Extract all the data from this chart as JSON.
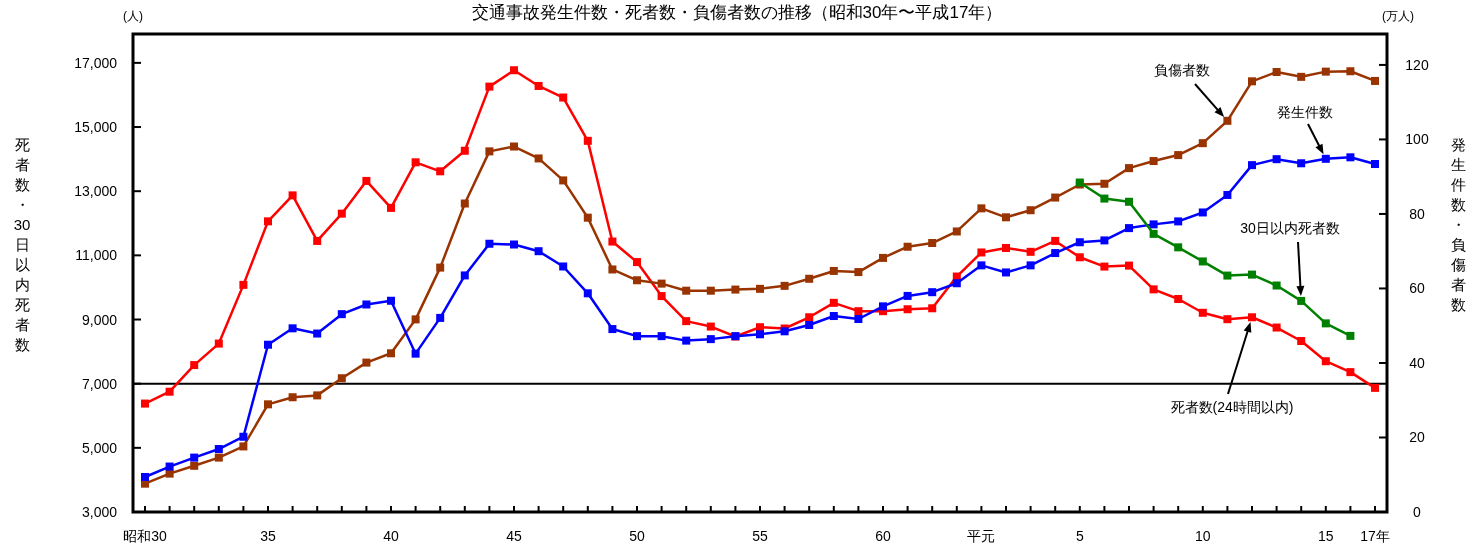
{
  "chart_data": {
    "type": "line",
    "title": "交通事故発生件数・死者数・負傷者数の推移（昭和30年〜平成17年）",
    "ylabel": "死者数・30日以内死者数",
    "y2label": "発生件数・負傷者数",
    "annotations": [
      "(人)",
      "(万人)"
    ],
    "categories": [
      "昭和30",
      null,
      null,
      null,
      null,
      "35",
      null,
      null,
      null,
      null,
      "40",
      null,
      null,
      null,
      null,
      "45",
      null,
      null,
      null,
      null,
      "50",
      null,
      null,
      null,
      null,
      "55",
      null,
      null,
      null,
      null,
      "60",
      null,
      null,
      null,
      "平元",
      null,
      null,
      null,
      "5",
      null,
      null,
      null,
      null,
      "10",
      null,
      null,
      null,
      null,
      "15",
      null,
      "17年"
    ],
    "ylim": [
      3000,
      17900
    ],
    "yticks": [
      {
        "value": 3000,
        "label": "3,000"
      },
      {
        "value": 5000,
        "label": "5,000"
      },
      {
        "value": 7000,
        "label": "7,000"
      },
      {
        "value": 9000,
        "label": "9,000"
      },
      {
        "value": 11000,
        "label": "11,000"
      },
      {
        "value": 13000,
        "label": "13,000"
      },
      {
        "value": 15000,
        "label": "15,000"
      },
      {
        "value": 17000,
        "label": "17,000"
      }
    ],
    "y2lim": [
      0,
      128.3
    ],
    "y2ticks": [
      0,
      20,
      40,
      60,
      80,
      100,
      120
    ],
    "marker": "square",
    "ref_lines": [
      {
        "axis": "y",
        "value": 7000,
        "color": "#000000"
      }
    ],
    "series": [
      {
        "name": "死者数(24時間以内)",
        "color": "#ff0000",
        "values": [
          6380,
          6750,
          7580,
          8250,
          10080,
          12060,
          12870,
          11450,
          12300,
          13320,
          12480,
          13900,
          13620,
          14260,
          16260,
          16770,
          16280,
          15920,
          14570,
          11430,
          10790,
          9730,
          8950,
          8780,
          8470,
          8760,
          8720,
          9070,
          9520,
          9260,
          9260,
          9320,
          9350,
          10340,
          11090,
          11230,
          11110,
          11450,
          10940,
          10650,
          10680,
          9940,
          9640,
          9210,
          9010,
          9070,
          8750,
          8330,
          7700,
          7360,
          6870
        ]
      },
      {
        "name": "負傷者数",
        "color": "#993300",
        "axis": "y2",
        "values": [
          7.6,
          10.3,
          12.4,
          14.6,
          17.6,
          28.9,
          30.8,
          31.3,
          35.9,
          40.1,
          42.6,
          51.7,
          65.6,
          82.8,
          96.8,
          98.1,
          94.9,
          89.0,
          79.0,
          65.1,
          62.2,
          61.3,
          59.4,
          59.4,
          59.7,
          59.9,
          60.7,
          62.6,
          64.7,
          64.4,
          68.2,
          71.2,
          72.2,
          75.3,
          81.5,
          79.1,
          81.0,
          84.4,
          87.9,
          88.1,
          92.3,
          94.2,
          95.8,
          99.0,
          105.0,
          115.6,
          118.1,
          116.8,
          118.2,
          118.3,
          115.7
        ]
      },
      {
        "name": "発生件数",
        "color": "#0000ff",
        "axis": "y2",
        "values": [
          9.4,
          12.2,
          14.6,
          16.9,
          20.2,
          44.9,
          49.3,
          47.9,
          53.1,
          55.7,
          56.7,
          42.5,
          52.1,
          63.5,
          72.0,
          71.8,
          70.0,
          65.9,
          58.7,
          49.1,
          47.2,
          47.2,
          46.0,
          46.4,
          47.2,
          47.7,
          48.5,
          50.2,
          52.6,
          51.8,
          55.2,
          58.0,
          59.0,
          61.4,
          66.2,
          64.3,
          66.2,
          69.5,
          72.4,
          72.9,
          76.2,
          77.2,
          78.0,
          80.4,
          85.1,
          93.1,
          94.7,
          93.6,
          94.8,
          95.2,
          93.4
        ]
      },
      {
        "name": "30日以内死者数",
        "color": "#008000",
        "values": [
          null,
          null,
          null,
          null,
          null,
          null,
          null,
          null,
          null,
          null,
          null,
          null,
          null,
          null,
          null,
          null,
          null,
          null,
          null,
          null,
          null,
          null,
          null,
          null,
          null,
          null,
          null,
          null,
          null,
          null,
          null,
          null,
          null,
          null,
          null,
          null,
          null,
          null,
          13270,
          12770,
          12670,
          11670,
          11250,
          10810,
          10370,
          10400,
          10060,
          9580,
          8880,
          8490,
          null
        ]
      }
    ]
  }
}
